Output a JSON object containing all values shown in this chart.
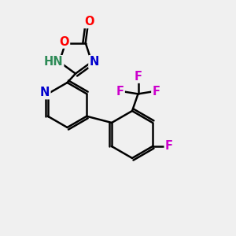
{
  "background_color": "#f0f0f0",
  "bond_color": "#000000",
  "atom_colors": {
    "O": "#ff0000",
    "N": "#0000cd",
    "NH": "#2e8b57",
    "F": "#cc00cc",
    "C": "#000000"
  },
  "lw": 1.8,
  "font_size": 10.5
}
